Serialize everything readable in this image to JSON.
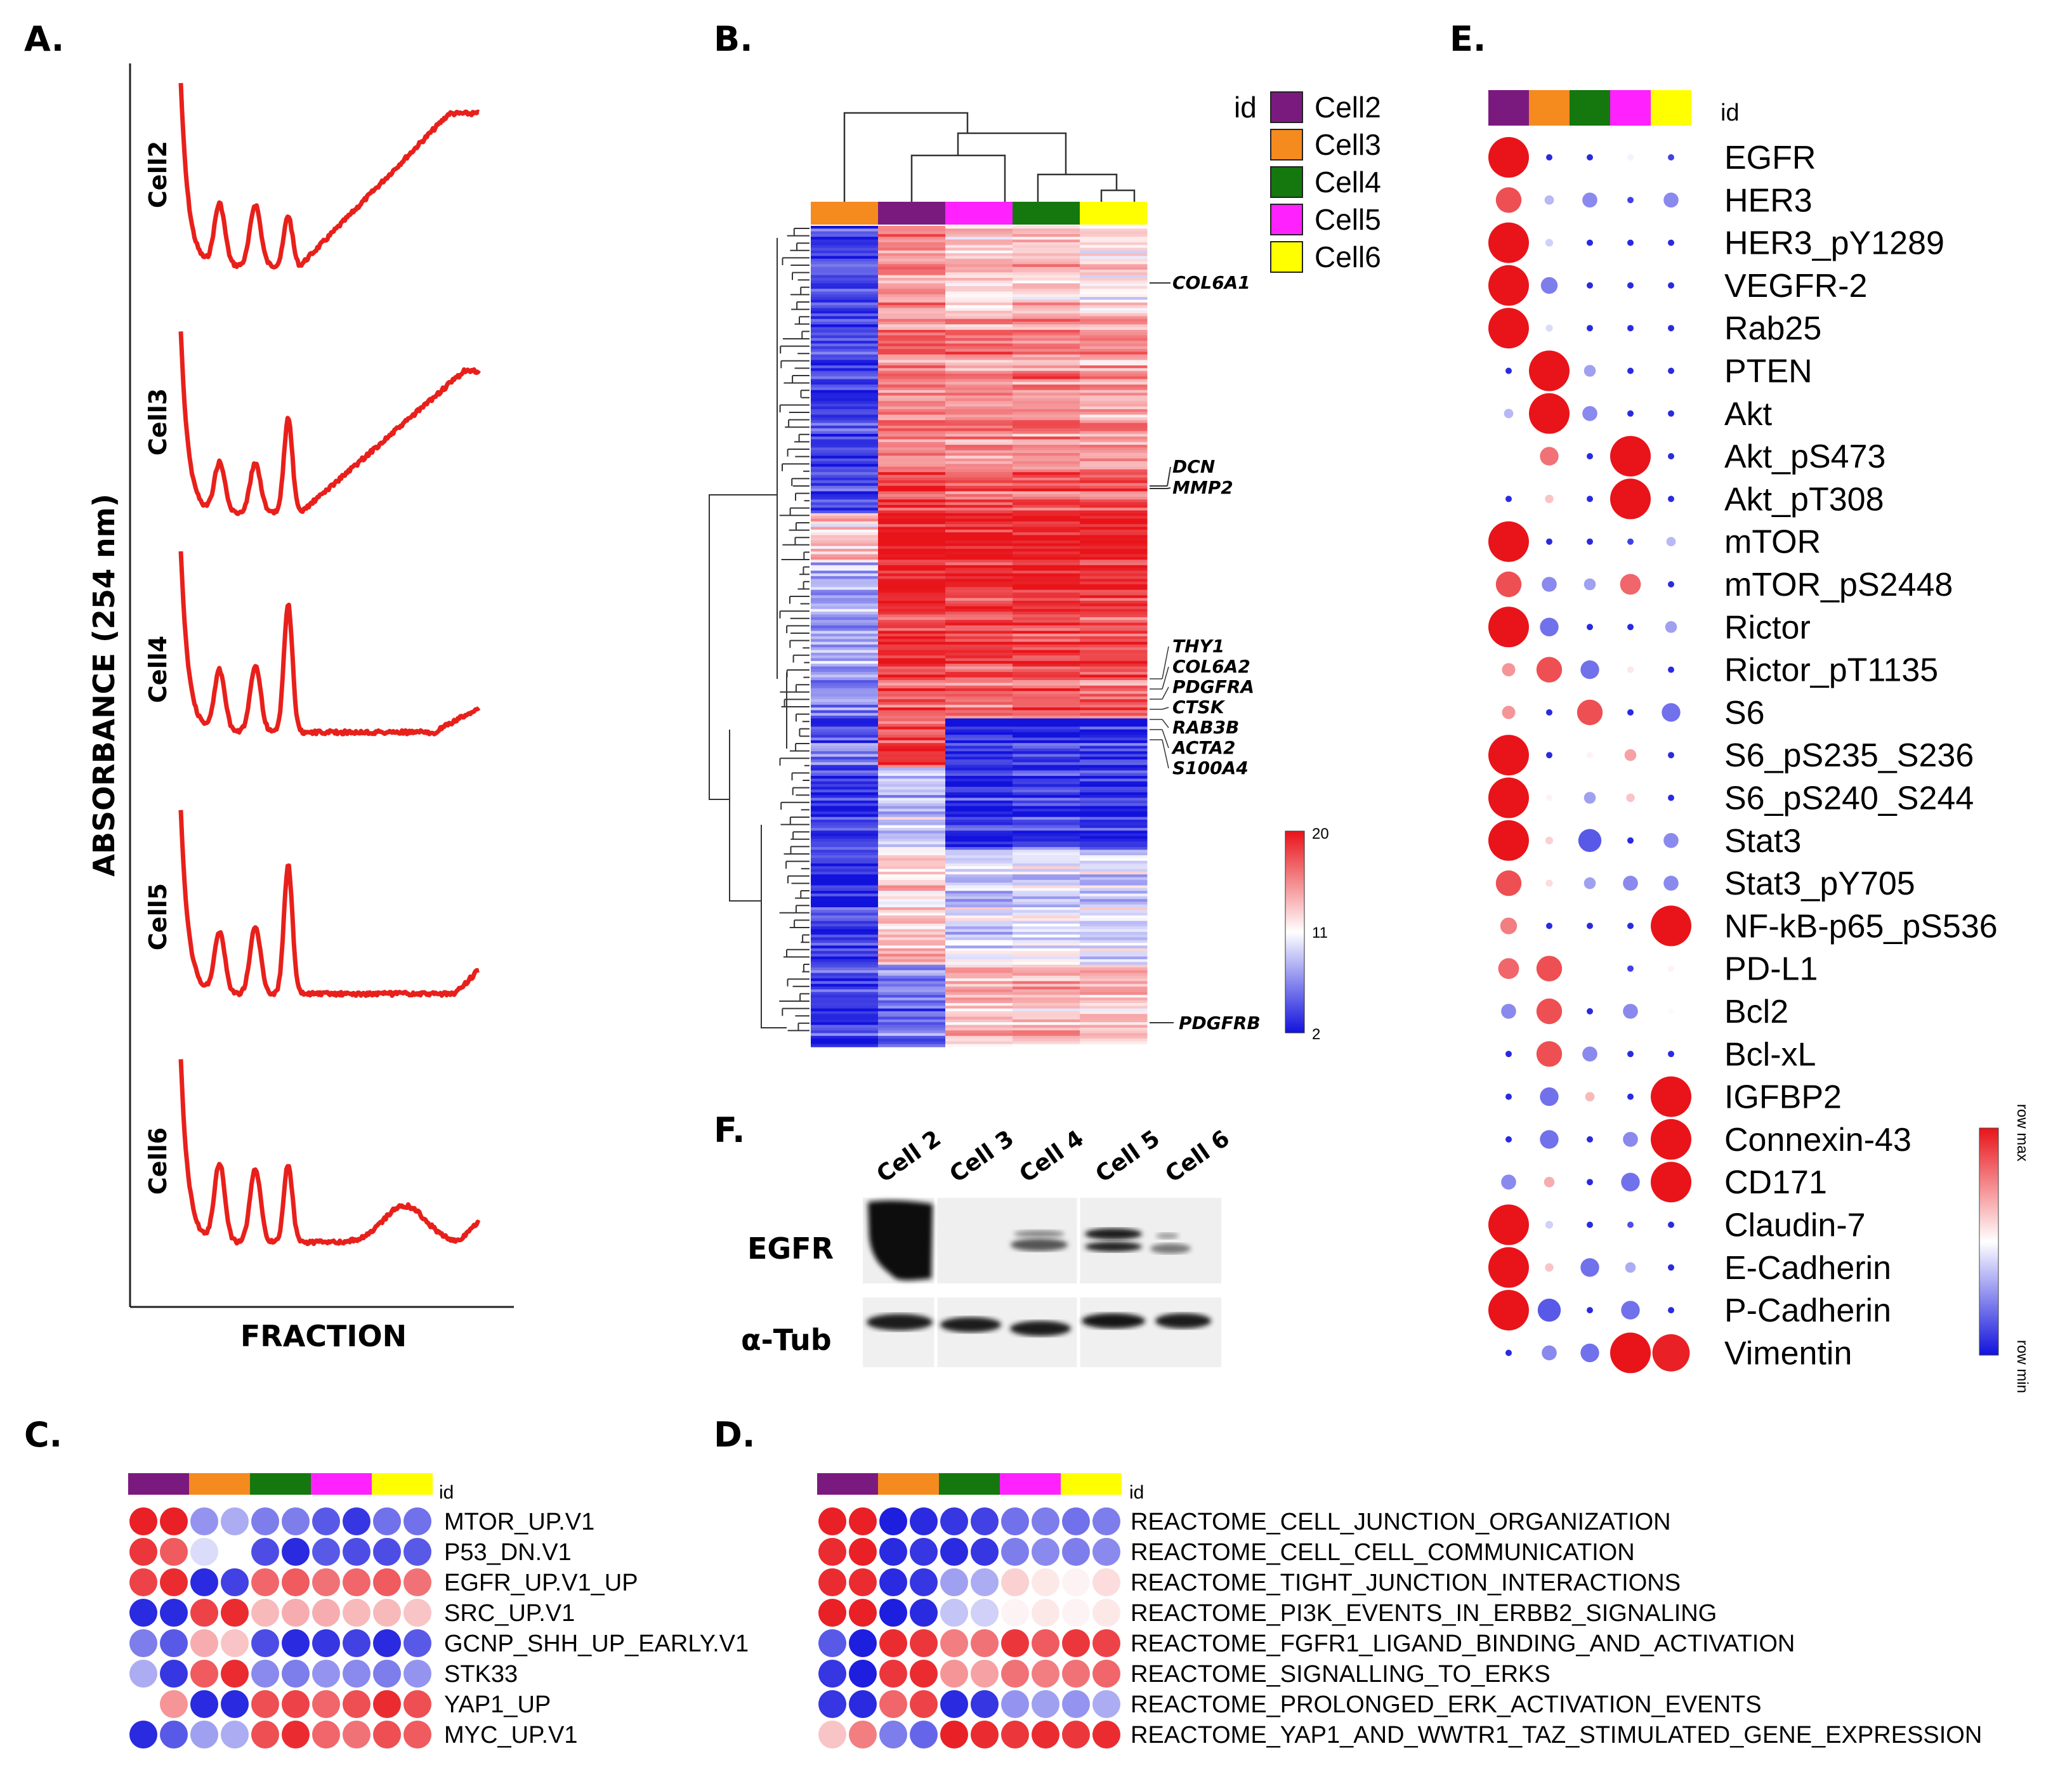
{
  "panels": {
    "A": {
      "label": "A.",
      "ylabel": "ABSORBANCE (254 nm)",
      "xlabel": "FRACTION",
      "traces": [
        "Cell2",
        "Cell3",
        "Cell4",
        "Cell5",
        "Cell6"
      ]
    },
    "B": {
      "label": "B.",
      "legend_title": "id",
      "cells": [
        "Cell2",
        "Cell3",
        "Cell4",
        "Cell5",
        "Cell6"
      ],
      "column_order": [
        "Cell3",
        "Cell2",
        "Cell5",
        "Cell4",
        "Cell6"
      ],
      "genes_upper": [
        "COL6A1",
        "DCN",
        "MMP2"
      ],
      "genes_mid": [
        "THY1",
        "COL6A2",
        "PDGFRA",
        "CTSK",
        "RAB3B",
        "ACTA2",
        "S100A4"
      ],
      "genes_lower": [
        "PDGFRB"
      ],
      "scale": {
        "max": "20",
        "mid": "11",
        "min": "2"
      }
    },
    "C": {
      "label": "C.",
      "id_label": "id",
      "rows": [
        "MTOR_UP.V1",
        "P53_DN.V1",
        "EGFR_UP.V1_UP",
        "SRC_UP.V1",
        "GCNP_SHH_UP_EARLY.V1",
        "STK33",
        "YAP1_UP",
        "MYC_UP.V1"
      ],
      "values": [
        [
          0.95,
          0.95,
          -0.45,
          -0.35,
          -0.55,
          -0.55,
          -0.7,
          -0.85,
          -0.6,
          -0.6
        ],
        [
          0.85,
          0.7,
          -0.15,
          0.0,
          -0.75,
          -0.9,
          -0.7,
          -0.75,
          -0.75,
          -0.7
        ],
        [
          0.8,
          0.9,
          -0.9,
          -0.8,
          0.65,
          0.7,
          0.6,
          0.65,
          0.7,
          0.6
        ],
        [
          -0.9,
          -0.9,
          0.8,
          0.9,
          0.3,
          0.35,
          0.35,
          0.3,
          0.3,
          0.25
        ],
        [
          -0.55,
          -0.7,
          0.35,
          0.25,
          -0.75,
          -0.9,
          -0.85,
          -0.8,
          -0.9,
          -0.7
        ],
        [
          -0.35,
          -0.85,
          0.7,
          0.9,
          -0.5,
          -0.55,
          -0.45,
          -0.5,
          -0.55,
          -0.45
        ],
        [
          0.0,
          0.45,
          -0.9,
          -0.9,
          0.75,
          0.8,
          0.65,
          0.75,
          0.9,
          0.75
        ],
        [
          -0.9,
          -0.7,
          -0.4,
          -0.35,
          0.75,
          0.9,
          0.65,
          0.6,
          0.75,
          0.7
        ]
      ]
    },
    "D": {
      "label": "D.",
      "id_label": "id",
      "rows": [
        "REACTOME_CELL_JUNCTION_ORGANIZATION",
        "REACTOME_CELL_CELL_COMMUNICATION",
        "REACTOME_TIGHT_JUNCTION_INTERACTIONS",
        "REACTOME_PI3K_EVENTS_IN_ERBB2_SIGNALING",
        "REACTOME_FGFR1_LIGAND_BINDING_AND_ACTIVATION",
        "REACTOME_SIGNALLING_TO_ERKS",
        "REACTOME_PROLONGED_ERK_ACTIVATION_EVENTS",
        "REACTOME_YAP1_AND_WWTR1_TAZ_STIMULATED_GENE_EXPRESSION"
      ],
      "values": [
        [
          0.95,
          0.95,
          -0.95,
          -0.9,
          -0.85,
          -0.8,
          -0.6,
          -0.55,
          -0.6,
          -0.55
        ],
        [
          0.9,
          0.95,
          -0.9,
          -0.85,
          -0.9,
          -0.85,
          -0.55,
          -0.5,
          -0.55,
          -0.5
        ],
        [
          0.9,
          0.9,
          -0.9,
          -0.85,
          -0.4,
          -0.35,
          0.2,
          0.1,
          0.05,
          0.15
        ],
        [
          0.95,
          0.95,
          -0.95,
          -0.9,
          -0.25,
          -0.2,
          0.05,
          0.1,
          0.05,
          0.1
        ],
        [
          -0.7,
          -0.95,
          0.9,
          0.85,
          0.55,
          0.6,
          0.85,
          0.7,
          0.85,
          0.8
        ],
        [
          -0.85,
          -0.95,
          0.85,
          0.9,
          0.45,
          0.4,
          0.6,
          0.55,
          0.6,
          0.65
        ],
        [
          -0.85,
          -0.9,
          0.65,
          0.8,
          -0.9,
          -0.85,
          -0.45,
          -0.4,
          -0.45,
          -0.35
        ],
        [
          0.25,
          0.55,
          -0.55,
          -0.65,
          0.95,
          0.9,
          0.85,
          0.9,
          0.85,
          0.9
        ]
      ]
    },
    "E": {
      "label": "E.",
      "id_label": "id",
      "rows": [
        "EGFR",
        "HER3",
        "HER3_pY1289",
        "VEGFR-2",
        "Rab25",
        "PTEN",
        "Akt",
        "Akt_pS473",
        "Akt_pT308",
        "mTOR",
        "mTOR_pS2448",
        "Rictor",
        "Rictor_pT1135",
        "S6",
        "S6_pS235_S236",
        "S6_pS240_S244",
        "Stat3",
        "Stat3_pY705",
        "NF-kB-p65_pS536",
        "PD-L1",
        "Bcl2",
        "Bcl-xL",
        "IGFBP2",
        "Connexin-43",
        "CD171",
        "Claudin-7",
        "E-Cadherin",
        "P-Cadherin",
        "Vimentin"
      ],
      "values": [
        [
          1.0,
          -0.9,
          -0.9,
          -0.05,
          -0.8
        ],
        [
          0.75,
          -0.3,
          -0.5,
          -0.8,
          -0.5
        ],
        [
          1.0,
          -0.2,
          -0.9,
          -0.9,
          -0.9
        ],
        [
          1.0,
          -0.55,
          -0.9,
          -0.9,
          -0.9
        ],
        [
          1.0,
          -0.15,
          -0.9,
          -0.9,
          -0.9
        ],
        [
          -0.9,
          1.0,
          -0.4,
          -0.9,
          -0.9
        ],
        [
          -0.3,
          1.0,
          -0.5,
          -0.9,
          -0.9
        ],
        [
          0.0,
          0.6,
          -0.9,
          1.0,
          -0.9
        ],
        [
          -0.9,
          0.25,
          -0.9,
          1.0,
          -0.9
        ],
        [
          1.0,
          -0.9,
          -0.9,
          -0.8,
          -0.3
        ],
        [
          0.75,
          -0.5,
          -0.4,
          0.65,
          -0.9
        ],
        [
          1.0,
          -0.6,
          -0.9,
          -0.9,
          -0.4
        ],
        [
          0.45,
          0.75,
          -0.6,
          0.1,
          -0.9
        ],
        [
          0.45,
          -0.9,
          0.75,
          -0.9,
          -0.6
        ],
        [
          1.0,
          -0.9,
          0.05,
          0.4,
          -0.9
        ],
        [
          1.0,
          0.05,
          -0.4,
          0.25,
          -0.9
        ],
        [
          1.0,
          0.2,
          -0.7,
          -0.9,
          -0.5
        ],
        [
          0.75,
          0.15,
          -0.4,
          -0.5,
          -0.5
        ],
        [
          0.55,
          -0.9,
          -0.9,
          -0.9,
          1.0
        ],
        [
          0.65,
          0.75,
          0.0,
          -0.8,
          0.05
        ],
        [
          -0.5,
          0.75,
          -0.9,
          -0.5,
          0.02
        ],
        [
          -0.9,
          0.75,
          -0.5,
          -0.9,
          -0.9
        ],
        [
          -0.9,
          -0.6,
          0.3,
          -0.9,
          1.0
        ],
        [
          -0.9,
          -0.6,
          -0.9,
          -0.5,
          1.0
        ],
        [
          -0.5,
          0.35,
          -0.9,
          -0.6,
          1.0
        ],
        [
          1.0,
          -0.2,
          -0.9,
          -0.75,
          -0.9
        ],
        [
          1.0,
          0.25,
          -0.6,
          -0.35,
          -0.9
        ],
        [
          1.0,
          -0.7,
          -0.9,
          -0.6,
          -0.9
        ],
        [
          -0.9,
          -0.5,
          -0.6,
          1.0,
          0.95
        ]
      ],
      "scale": {
        "max": "row max",
        "min": "row min"
      }
    },
    "F": {
      "label": "F.",
      "lanes": [
        "Cell 2",
        "Cell 3",
        "Cell 4",
        "Cell 5",
        "Cell 6"
      ],
      "rows": [
        "EGFR",
        "α-Tub"
      ]
    }
  },
  "colors": {
    "Cell2": "#7b1a7e",
    "Cell3": "#f58a1f",
    "Cell4": "#14780f",
    "Cell5": "#ff22ff",
    "Cell6": "#ffff00",
    "trace": "#e8201b",
    "high": "#e8141a",
    "mid": "#ffffff",
    "low": "#1212dd"
  }
}
